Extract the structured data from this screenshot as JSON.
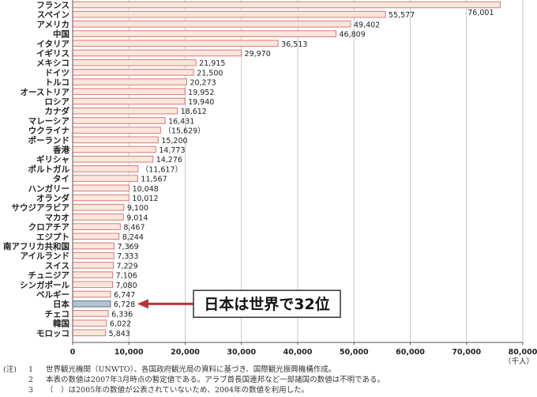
{
  "chart_data": {
    "type": "bar",
    "orientation": "horizontal",
    "categories": [
      "フランス",
      "スペイン",
      "アメリカ",
      "中国",
      "イタリア",
      "イギリス",
      "メキシコ",
      "ドイツ",
      "トルコ",
      "オーストリア",
      "ロシア",
      "カナダ",
      "マレーシア",
      "ウクライナ",
      "ポーランド",
      "香港",
      "ギリシャ",
      "ポルトガル",
      "タイ",
      "ハンガリー",
      "オランダ",
      "サウジアラビア",
      "マカオ",
      "クロアチア",
      "エジプト",
      "南アフリカ共和国",
      "アイルランド",
      "スイス",
      "チュニジア",
      "シンガポール",
      "ベルギー",
      "日本",
      "チェコ",
      "韓国",
      "モロッコ"
    ],
    "values": [
      76001,
      55577,
      49402,
      46809,
      36513,
      29970,
      21915,
      21500,
      20273,
      19952,
      19940,
      18612,
      16431,
      15629,
      15200,
      14773,
      14276,
      11617,
      11567,
      10048,
      10012,
      9100,
      9014,
      8467,
      8244,
      7369,
      7333,
      7229,
      7106,
      7080,
      6747,
      6728,
      6336,
      6022,
      5843
    ],
    "value_labels": [
      "76,001",
      "55,577",
      "49,402",
      "46,809",
      "36,513",
      "29,970",
      "21,915",
      "21,500",
      "20,273",
      "19,952",
      "19,940",
      "18,612",
      "16,431",
      "（15,629）",
      "15,200",
      "14,773",
      "14,276",
      "（11,617）",
      "11,567",
      "10,048",
      "10,012",
      "9,100",
      "9,014",
      "8,467",
      "8,244",
      "7,369",
      "7,333",
      "7,229",
      "7,106",
      "7,080",
      "6,747",
      "6,728",
      "6,336",
      "6,022",
      "5,843"
    ],
    "xlim": [
      0,
      80000
    ],
    "xticks": [
      0,
      10000,
      20000,
      30000,
      40000,
      50000,
      60000,
      70000,
      80000
    ],
    "xtick_labels": [
      "0",
      "10,000",
      "20,000",
      "30,000",
      "40,000",
      "50,000",
      "60,000",
      "70,000",
      "80,000"
    ],
    "xlabel": "（千人）",
    "grid": true,
    "highlight_category": "日本",
    "annotation": "日本は世界で32位",
    "colors": {
      "bar_fill": "#fbe7dc",
      "bar_edge": "#d9787a",
      "highlight_fill": "#b5c2d2",
      "highlight_edge": "#5f7288",
      "arrow": "#b3343c",
      "grid": "#b9b9b9",
      "axis": "#555555"
    }
  },
  "notes": {
    "prefix": "(注)",
    "items": [
      {
        "num": "1",
        "text": "世界観光機関（UNWTO）、各国政府観光局の資料に基づき、国際観光振興機構作成。"
      },
      {
        "num": "2",
        "text": "本表の数値は2007年3月時点の暫定値である。アラブ首長国連邦など一部諸国の数値は不明である。"
      },
      {
        "num": "3",
        "text": "（　）は2005年の数値が公表されていないため、2004年の数値を利用した。"
      }
    ]
  }
}
